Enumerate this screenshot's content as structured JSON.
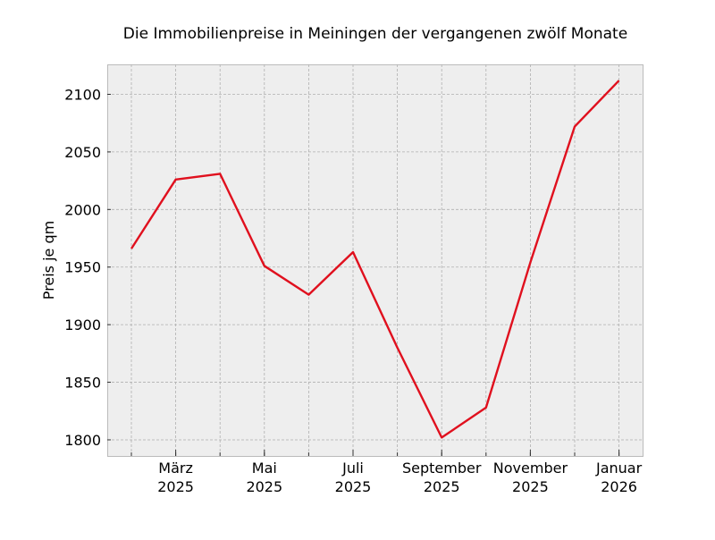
{
  "chart_data": {
    "type": "line",
    "title": "Die Immobilienpreise in Meiningen der vergangenen zwölf Monate",
    "xlabel": "",
    "ylabel": "Preis je qm",
    "x": [
      "2025-02",
      "2025-03",
      "2025-04",
      "2025-05",
      "2025-06",
      "2025-07",
      "2025-08",
      "2025-09",
      "2025-10",
      "2025-11",
      "2025-12",
      "2026-01"
    ],
    "series": [
      {
        "values": [
          1966,
          2026,
          2031,
          1951,
          1926,
          1963,
          1880,
          1802,
          1828,
          1954,
          2072,
          2112
        ],
        "color": "#e0101e"
      }
    ],
    "ylim": [
      1786,
      2126
    ],
    "xlim": [
      "2025-01-15",
      "2026-01-17"
    ],
    "yticks": [
      1800,
      1850,
      1900,
      1950,
      2000,
      2050,
      2100
    ],
    "xticks": [
      {
        "month": "2025-03",
        "label1": "März",
        "label2": "2025"
      },
      {
        "month": "2025-05",
        "label1": "Mai",
        "label2": "2025"
      },
      {
        "month": "2025-07",
        "label1": "Juli",
        "label2": "2025"
      },
      {
        "month": "2025-09",
        "label1": "September",
        "label2": "2025"
      },
      {
        "month": "2025-11",
        "label1": "November",
        "label2": "2025"
      },
      {
        "month": "2026-01",
        "label1": "Januar",
        "label2": "2026"
      }
    ],
    "grid": true,
    "background": "#eeeeee"
  }
}
